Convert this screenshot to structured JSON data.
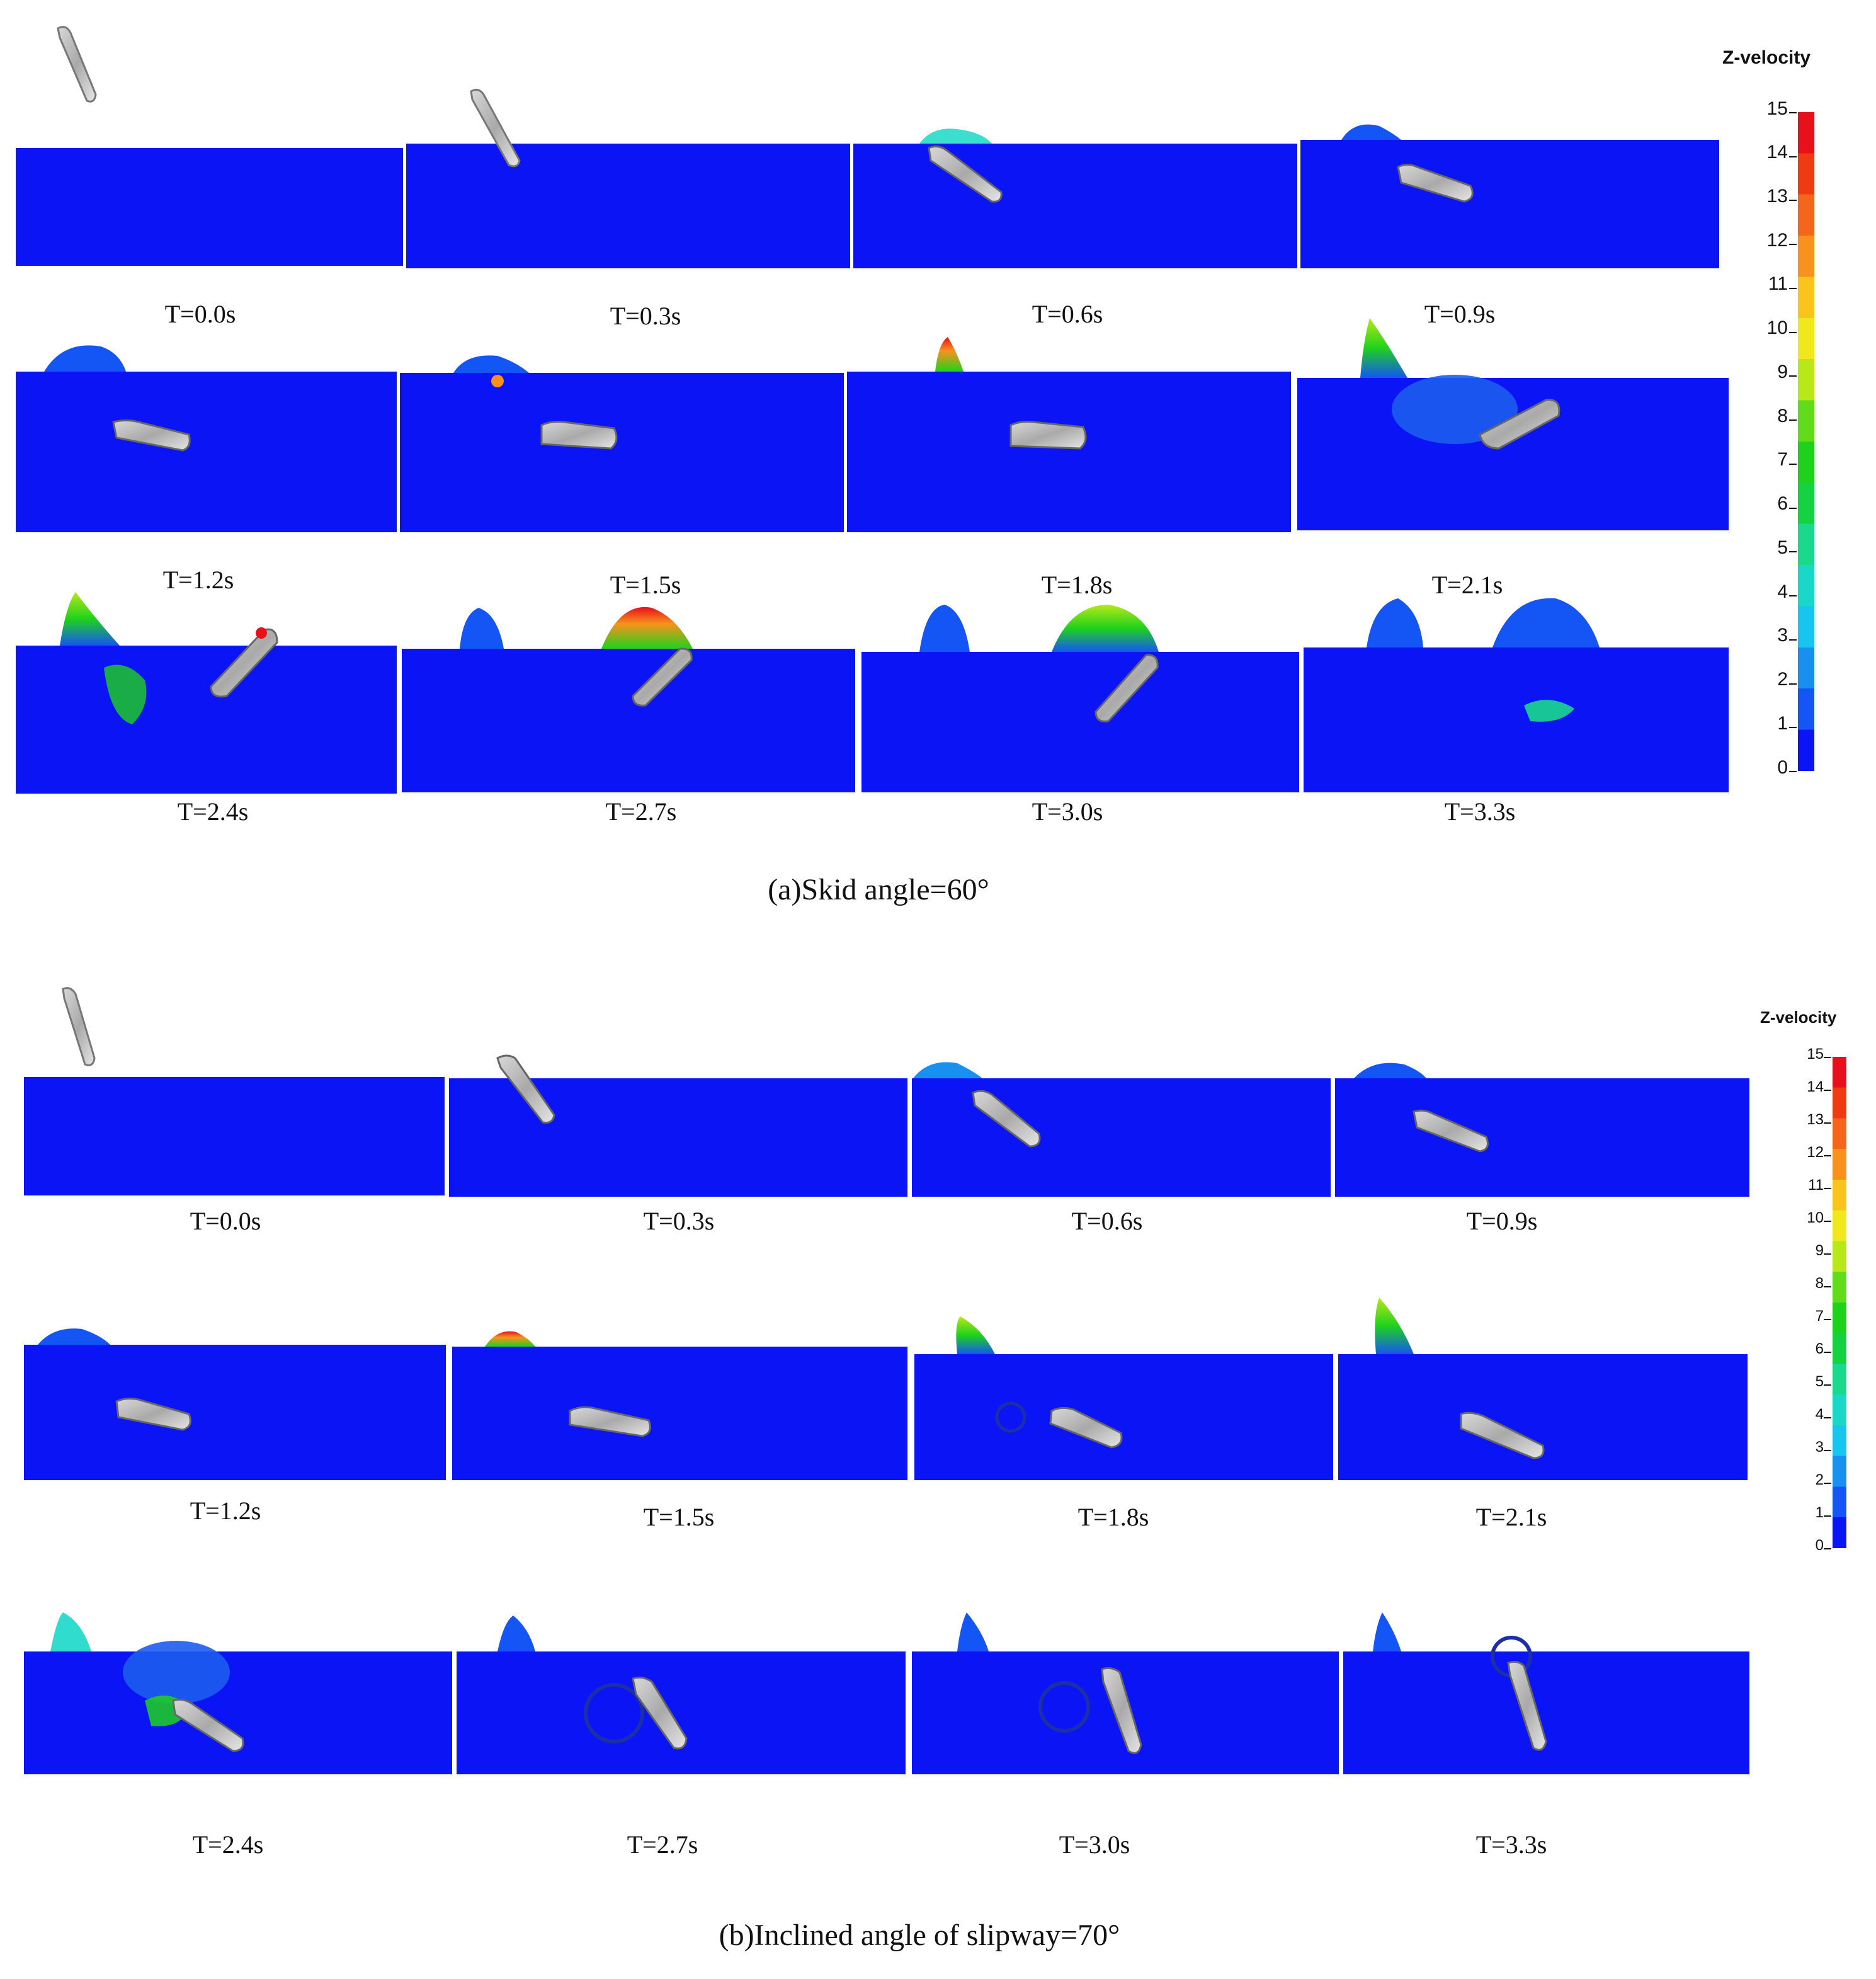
{
  "colorbar": {
    "title": "Z-velocity",
    "ticks": [
      "15",
      "14",
      "13",
      "12",
      "11",
      "10",
      "9",
      "8",
      "7",
      "6",
      "5",
      "4",
      "3",
      "2",
      "1",
      "0"
    ],
    "colors": [
      "#e8101a",
      "#f03a12",
      "#f5661a",
      "#f8921c",
      "#fbc41d",
      "#f0e81c",
      "#b8e81a",
      "#60dc1a",
      "#1ed21c",
      "#14d240",
      "#1ad88c",
      "#1ad8c8",
      "#18c4f0",
      "#1890f0",
      "#1455f5",
      "#0a14f5"
    ]
  },
  "water_color": "#0a14f5",
  "sections": [
    {
      "caption": "(a)Skid angle=60°",
      "rows": [
        [
          "T=0.0s",
          "T=0.3s",
          "T=0.6s",
          "T=0.9s"
        ],
        [
          "T=1.2s",
          "T=1.5s",
          "T=1.8s",
          "T=2.1s"
        ],
        [
          "T=2.4s",
          "T=2.7s",
          "T=3.0s",
          "T=3.3s"
        ]
      ]
    },
    {
      "caption": "(b)Inclined angle of slipway=70°",
      "rows": [
        [
          "T=0.0s",
          "T=0.3s",
          "T=0.6s",
          "T=0.9s"
        ],
        [
          "T=1.2s",
          "T=1.5s",
          "T=1.8s",
          "T=2.1s"
        ],
        [
          "T=2.4s",
          "T=2.7s",
          "T=3.0s",
          "T=3.3s"
        ]
      ]
    }
  ]
}
